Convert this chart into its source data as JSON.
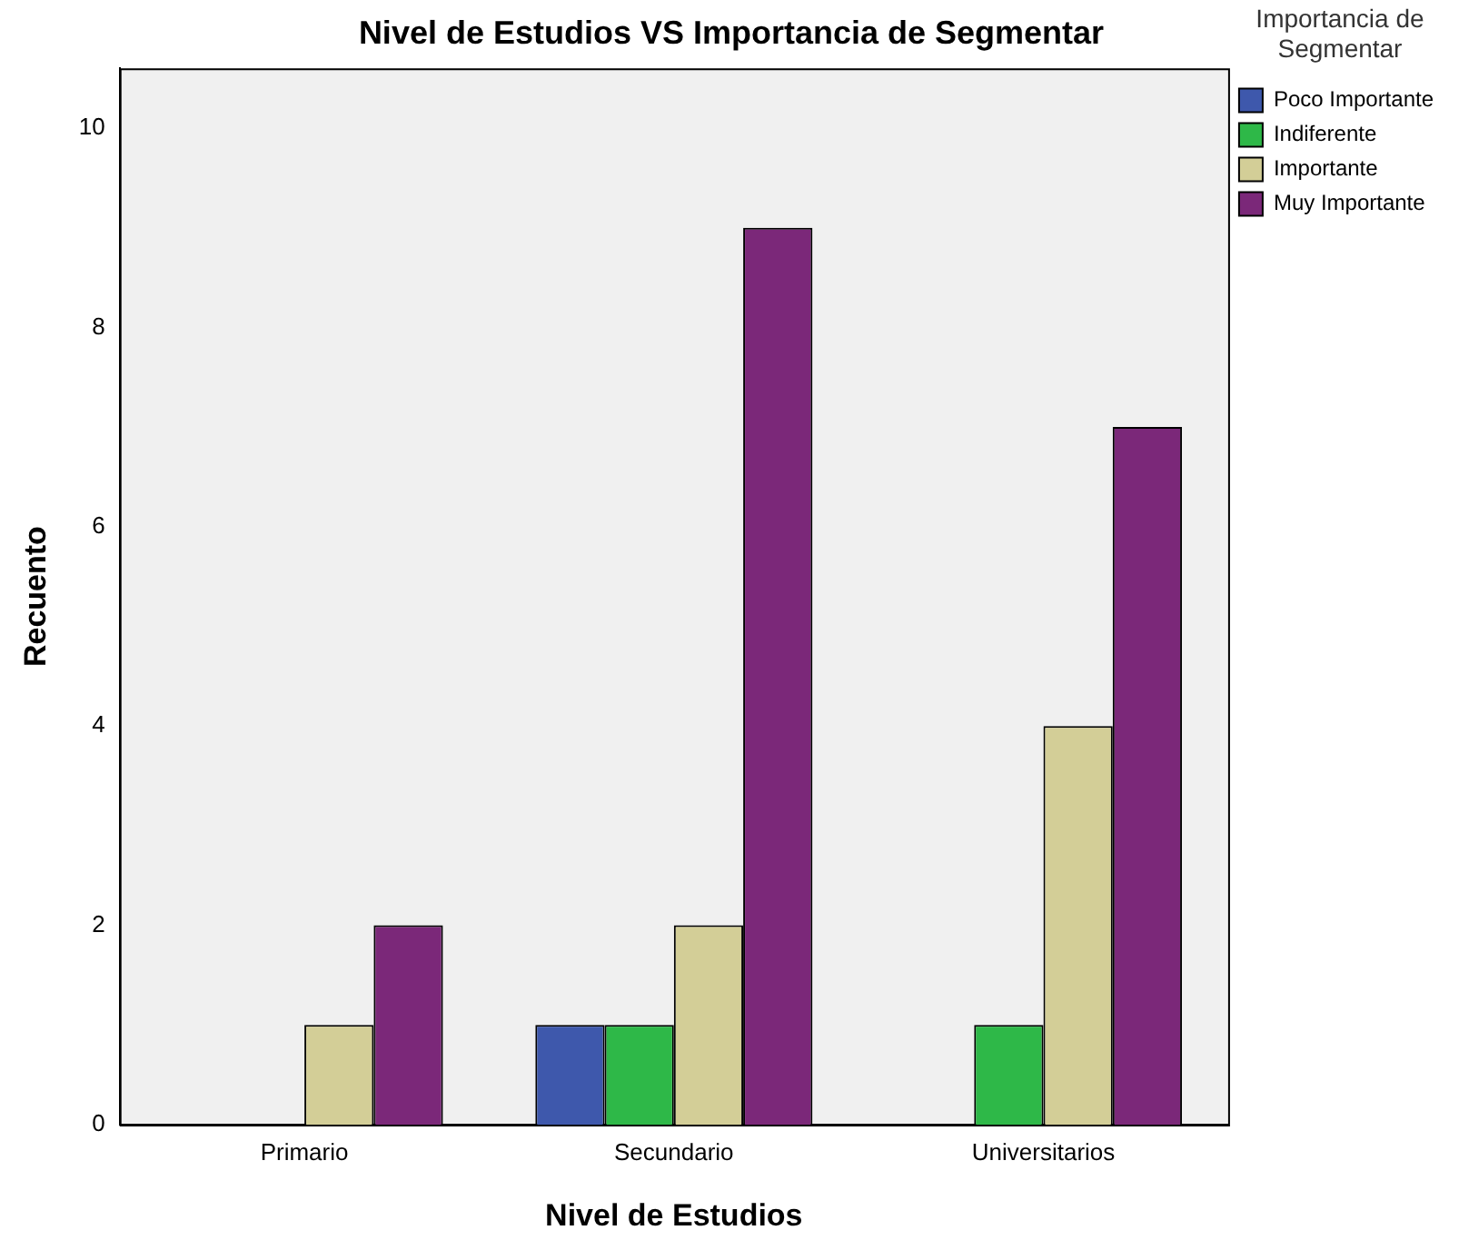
{
  "chart_data": {
    "type": "bar",
    "title": "Nivel de Estudios VS Importancia de Segmentar",
    "xlabel": "Nivel de Estudios",
    "ylabel": "Recuento",
    "legend_title": "Importancia de Segmentar",
    "categories": [
      "Primario",
      "Secundario",
      "Universitarios"
    ],
    "series": [
      {
        "name": "Poco Importante",
        "color": "#3e58ac",
        "values": [
          0,
          1,
          0
        ]
      },
      {
        "name": "Indiferente",
        "color": "#2eb848",
        "values": [
          0,
          1,
          1
        ]
      },
      {
        "name": "Importante",
        "color": "#d3ce97",
        "values": [
          1,
          2,
          4
        ]
      },
      {
        "name": "Muy Importante",
        "color": "#7b2879",
        "values": [
          2,
          9,
          7
        ]
      }
    ],
    "ylim": [
      0,
      10.6
    ],
    "yticks": [
      0,
      2,
      4,
      6,
      8,
      10
    ],
    "grid": false,
    "legend": "right"
  }
}
